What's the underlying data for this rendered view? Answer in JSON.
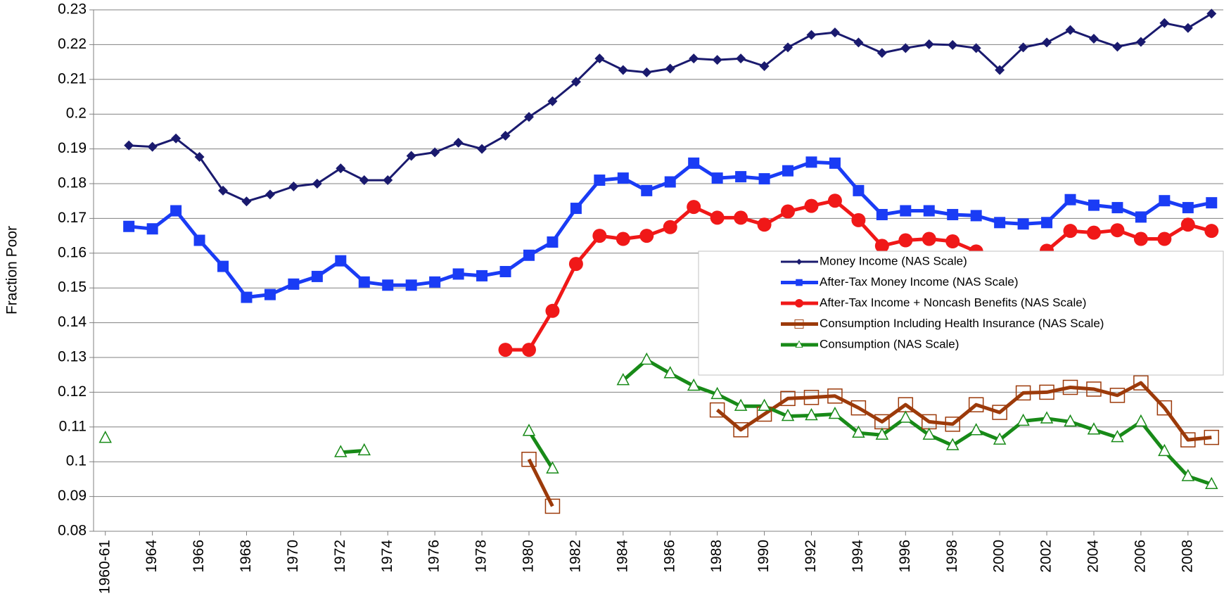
{
  "chart_data": {
    "type": "line",
    "y_label": "Fraction Poor",
    "categories": [
      "1960-61",
      null,
      "1964",
      null,
      "1966",
      null,
      "1968",
      null,
      "1970",
      null,
      "1972",
      null,
      "1974",
      null,
      "1976",
      null,
      "1978",
      null,
      "1980",
      null,
      "1982",
      null,
      "1984",
      null,
      "1986",
      null,
      "1988",
      null,
      "1990",
      null,
      "1992",
      null,
      "1994",
      null,
      "1996",
      null,
      "1998",
      null,
      "2000",
      null,
      "2002",
      null,
      "2004",
      null,
      "2006",
      null,
      "2008",
      null
    ],
    "ylim": [
      0.08,
      0.23
    ],
    "yticks": [
      0.08,
      0.09,
      0.1,
      0.11,
      0.12,
      0.13,
      0.14,
      0.15,
      0.16,
      0.17,
      0.18,
      0.19,
      0.2,
      0.21,
      0.22,
      0.23
    ],
    "grid": true,
    "series": [
      {
        "name": "Money Income (NAS Scale)",
        "color": "#1a1a6e",
        "marker": "diamond",
        "values": [
          null,
          0.191,
          0.1906,
          0.193,
          0.1877,
          0.178,
          0.1749,
          0.1769,
          0.1792,
          0.18,
          0.1844,
          0.181,
          0.181,
          0.188,
          0.189,
          0.1918,
          0.19,
          0.1938,
          0.1992,
          0.2037,
          0.2093,
          0.216,
          0.2127,
          0.212,
          0.2131,
          0.216,
          0.2156,
          0.216,
          0.2138,
          0.2192,
          0.2228,
          0.2235,
          0.2206,
          0.2176,
          0.219,
          0.2201,
          0.2199,
          0.219,
          0.2127,
          0.2192,
          0.2206,
          0.2242,
          0.2217,
          0.2194,
          0.2208,
          0.2262,
          0.2248,
          0.2289
        ]
      },
      {
        "name": "After-Tax Money Income (NAS Scale)",
        "color": "#1a3cf5",
        "marker": "square",
        "values": [
          null,
          0.1677,
          0.167,
          0.1722,
          0.1637,
          0.1562,
          0.1473,
          0.1481,
          0.1511,
          0.1533,
          0.1578,
          0.1517,
          0.1508,
          0.1508,
          0.1517,
          0.154,
          0.1535,
          0.1547,
          0.1594,
          0.1632,
          0.1729,
          0.181,
          0.1816,
          0.178,
          0.1805,
          0.1859,
          0.1816,
          0.182,
          0.1814,
          0.1837,
          0.1862,
          0.1859,
          0.178,
          0.1711,
          0.1722,
          0.1722,
          0.1711,
          0.1708,
          0.1688,
          0.1684,
          0.1688,
          0.1754,
          0.1738,
          0.1731,
          0.1704,
          0.1751,
          0.1731,
          0.1745
        ]
      },
      {
        "name": "After-Tax Income + Noncash Benefits (NAS Scale)",
        "color": "#f01818",
        "marker": "circle",
        "values": [
          null,
          null,
          null,
          null,
          null,
          null,
          null,
          null,
          null,
          null,
          null,
          null,
          null,
          null,
          null,
          null,
          null,
          0.1322,
          0.1322,
          0.1434,
          0.1569,
          0.165,
          0.1641,
          0.165,
          0.1675,
          0.1733,
          0.1702,
          0.1702,
          0.1682,
          0.172,
          0.1736,
          0.1751,
          0.1695,
          0.1621,
          0.1637,
          0.1641,
          0.1634,
          0.1605,
          0.1585,
          0.1567,
          0.1607,
          0.1664,
          0.1659,
          0.1666,
          0.1641,
          0.1641,
          0.1682,
          0.1664
        ]
      },
      {
        "name": "Consumption Including Health Insurance (NAS Scale)",
        "color": "#9c3a0a",
        "marker": "open-square",
        "values": [
          null,
          null,
          null,
          null,
          null,
          null,
          null,
          null,
          null,
          null,
          null,
          null,
          null,
          null,
          null,
          null,
          null,
          null,
          0.1007,
          0.0872,
          null,
          null,
          null,
          null,
          null,
          null,
          0.1149,
          0.1092,
          0.1137,
          0.1182,
          0.1185,
          0.1189,
          0.1155,
          0.1115,
          0.1164,
          0.1115,
          0.1108,
          0.1164,
          0.1142,
          0.1198,
          0.12,
          0.1214,
          0.1209,
          0.1191,
          0.1227,
          0.1155,
          0.1063,
          0.107
        ]
      },
      {
        "name": "Consumption (NAS Scale)",
        "color": "#188a18",
        "marker": "open-triangle",
        "values": [
          0.1068,
          null,
          null,
          null,
          null,
          null,
          null,
          null,
          null,
          null,
          0.1027,
          0.1032,
          null,
          null,
          null,
          null,
          null,
          null,
          0.1088,
          0.098,
          null,
          null,
          0.1234,
          0.1293,
          0.1254,
          0.1218,
          0.1194,
          0.116,
          0.116,
          0.1131,
          0.1133,
          0.1137,
          0.1083,
          0.1077,
          0.1126,
          0.1077,
          0.1047,
          0.109,
          0.1063,
          0.1117,
          0.1124,
          0.1115,
          0.1092,
          0.107,
          0.1115,
          0.103,
          0.0958,
          0.0935
        ]
      }
    ]
  }
}
